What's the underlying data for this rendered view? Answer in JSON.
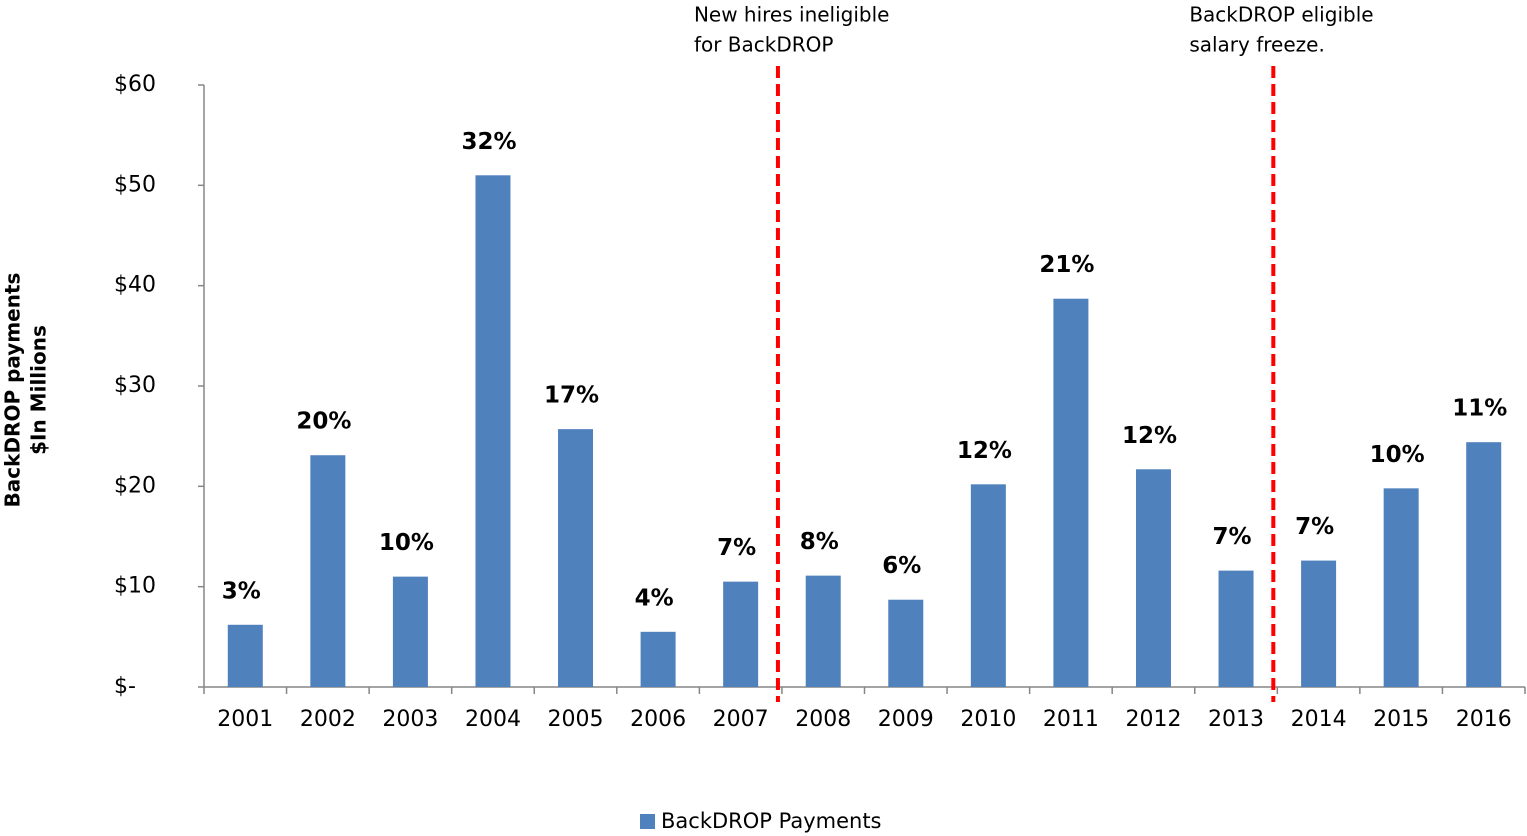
{
  "chart_data": {
    "type": "bar",
    "y_label": [
      "BackDROP payments",
      "$In Millions"
    ],
    "categories": [
      "2001",
      "2002",
      "2003",
      "2004",
      "2005",
      "2006",
      "2007",
      "2008",
      "2009",
      "2010",
      "2011",
      "2012",
      "2013",
      "2014",
      "2015",
      "2016"
    ],
    "series": [
      {
        "name": "BackDROP Payments",
        "color": "#4f81bd",
        "values": [
          6.2,
          23.1,
          11.0,
          51.0,
          25.7,
          5.5,
          10.5,
          11.1,
          8.7,
          20.2,
          38.7,
          21.7,
          11.6,
          12.6,
          19.8,
          24.4
        ]
      }
    ],
    "bar_labels": [
      "3%",
      "20%",
      "10%",
      "32%",
      "17%",
      "4%",
      "7%",
      "8%",
      "6%",
      "12%",
      "21%",
      "12%",
      "7%",
      "7%",
      "10%",
      "11%"
    ],
    "annotations": [
      {
        "lines": [
          "New hires ineligible",
          "for BackDROP"
        ],
        "color": "#ff0000"
      },
      {
        "lines": [
          "BackDROP eligible",
          "salary freeze."
        ],
        "color": "#ff0000"
      }
    ],
    "ylim": [
      0,
      60
    ],
    "yticks": [
      {
        "value": 0,
        "label": "$-"
      },
      {
        "value": 10,
        "label": "$10"
      },
      {
        "value": 20,
        "label": "$20"
      },
      {
        "value": 30,
        "label": "$30"
      },
      {
        "value": 40,
        "label": "$40"
      },
      {
        "value": 50,
        "label": "$50"
      },
      {
        "value": 60,
        "label": "$60"
      }
    ],
    "legend": "bottom"
  }
}
